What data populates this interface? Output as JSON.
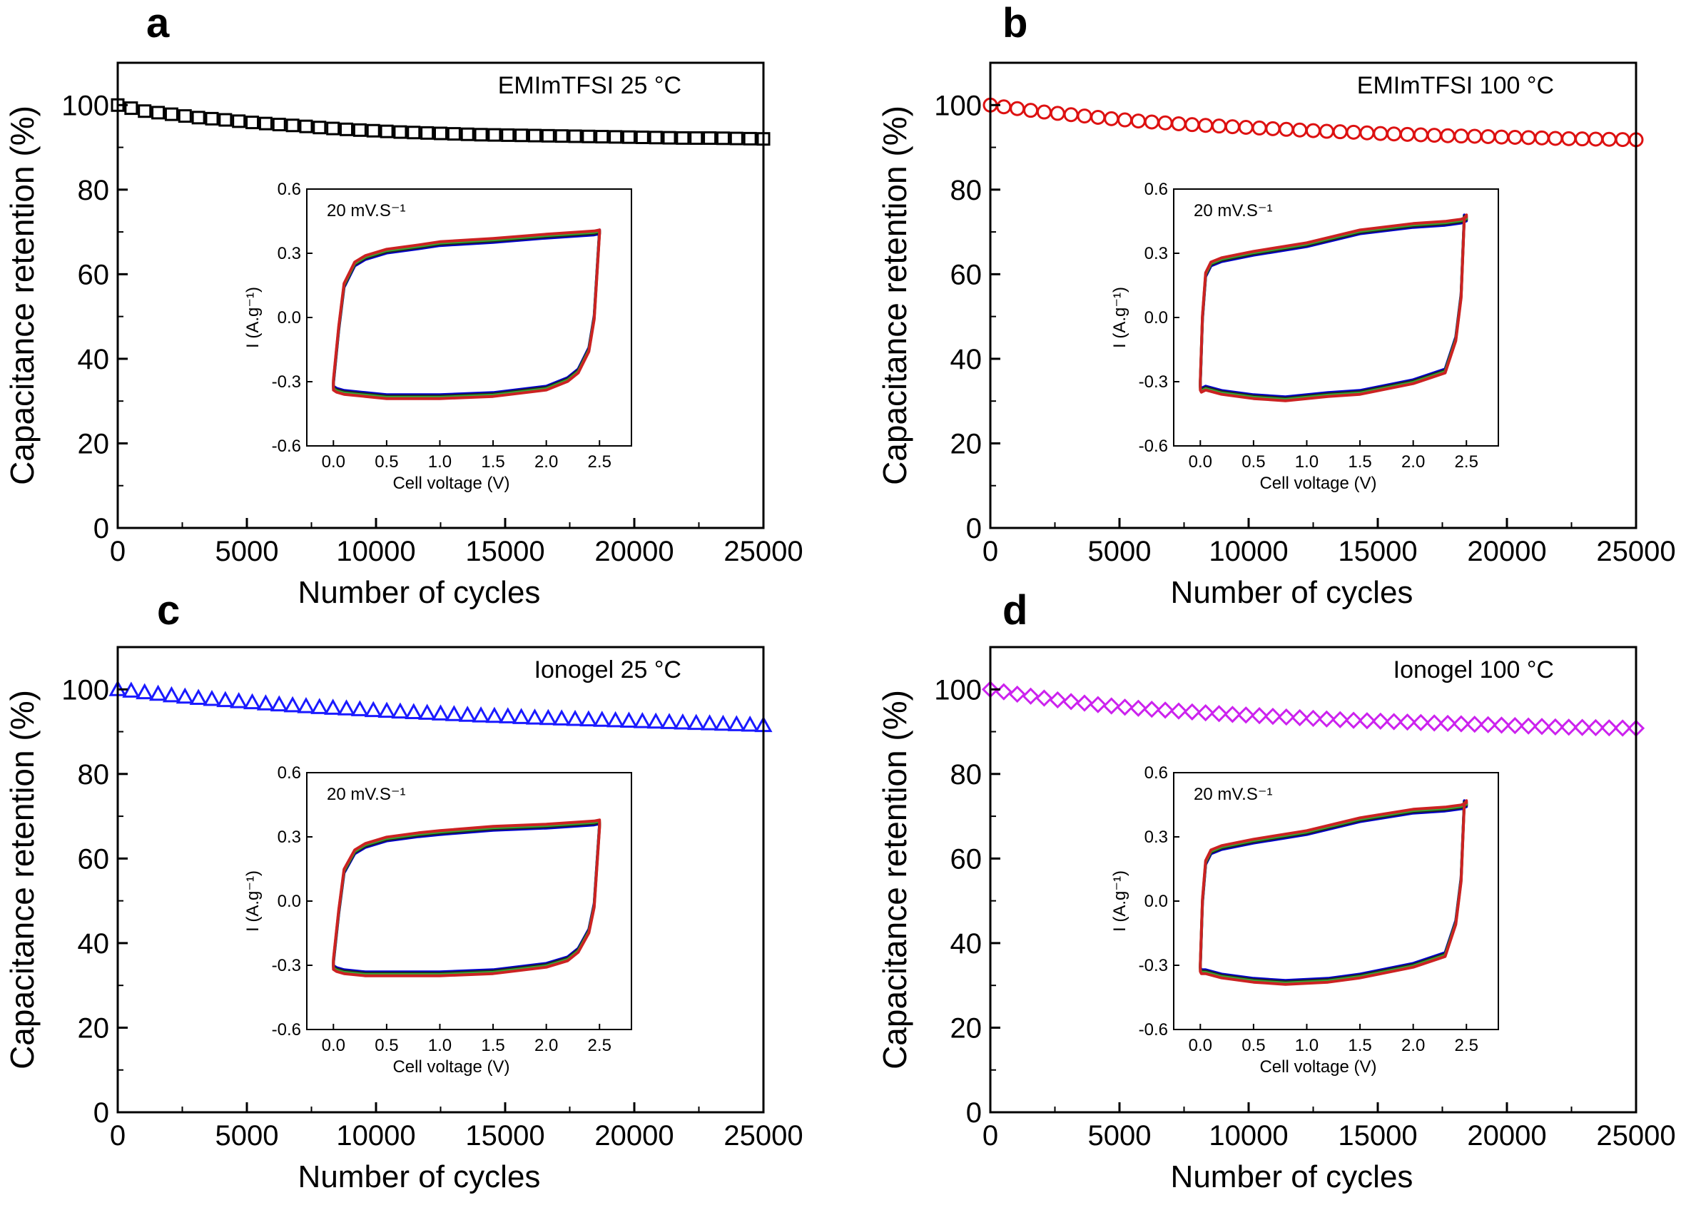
{
  "chart_data": [
    {
      "panel": "a",
      "type": "scatter",
      "annotation": "EMImTFSI 25 °C",
      "xlabel": "Number of cycles",
      "ylabel": "Capacitance retention (%)",
      "xlim": [
        0,
        25000
      ],
      "ylim": [
        0,
        110
      ],
      "xticks": [
        "0",
        "5000",
        "10000",
        "15000",
        "20000",
        "25000"
      ],
      "yticks": [
        "0",
        "20",
        "40",
        "60",
        "80",
        "100"
      ],
      "marker": "square",
      "color": "#000000",
      "series": [
        {
          "x": [
            0,
            1000,
            2000,
            3000,
            4000,
            5000,
            6000,
            7000,
            8000,
            9000,
            10000,
            11000,
            12000,
            13000,
            14000,
            15000,
            16000,
            17000,
            18000,
            19000,
            20000,
            21000,
            22000,
            23000,
            24000,
            25000
          ],
          "values": [
            100.0,
            98.6,
            97.9,
            97.1,
            96.6,
            96.0,
            95.5,
            95.1,
            94.6,
            94.2,
            93.9,
            93.6,
            93.4,
            93.2,
            93.0,
            92.9,
            92.8,
            92.7,
            92.6,
            92.5,
            92.4,
            92.3,
            92.2,
            92.2,
            92.1,
            92.0
          ]
        }
      ],
      "inset": {
        "rate_label": "20 mV.S⁻¹",
        "xlabel": "Cell voltage (V)",
        "ylabel": "I (A.g⁻¹)",
        "xlim": [
          -0.25,
          2.8
        ],
        "ylim": [
          -0.6,
          0.6
        ],
        "xticks": [
          "0.0",
          "0.5",
          "1.0",
          "1.5",
          "2.0",
          "2.5"
        ],
        "yticks": [
          "-0.6",
          "-0.3",
          "0.0",
          "0.3",
          "0.6"
        ],
        "cv_x": [
          0.0,
          0.05,
          0.1,
          0.2,
          0.3,
          0.5,
          0.8,
          1.0,
          1.5,
          2.0,
          2.3,
          2.45,
          2.5,
          2.5,
          2.45,
          2.4,
          2.3,
          2.2,
          2.0,
          1.5,
          1.0,
          0.5,
          0.3,
          0.1,
          0.03,
          0.0
        ],
        "cv_upper": [
          -0.3,
          -0.05,
          0.15,
          0.25,
          0.28,
          0.31,
          0.33,
          0.345,
          0.36,
          0.38,
          0.39,
          0.395,
          0.4
        ],
        "cv_lower": [
          0.4,
          0.0,
          -0.15,
          -0.25,
          -0.29,
          -0.33,
          -0.36,
          -0.37,
          -0.37,
          -0.36,
          -0.35,
          -0.34,
          -0.33
        ],
        "curve_colors": [
          "#0000cc",
          "#222222",
          "#33aa33",
          "#cc2222"
        ]
      }
    },
    {
      "panel": "b",
      "type": "scatter",
      "annotation": "EMImTFSI 100 °C",
      "xlabel": "Number of cycles",
      "ylabel": "Capacitance retention (%)",
      "xlim": [
        0,
        25000
      ],
      "ylim": [
        0,
        110
      ],
      "xticks": [
        "0",
        "5000",
        "10000",
        "15000",
        "20000",
        "25000"
      ],
      "yticks": [
        "0",
        "20",
        "40",
        "60",
        "80",
        "100"
      ],
      "marker": "circle",
      "color": "#dd1111",
      "series": [
        {
          "x": [
            0,
            1000,
            2000,
            3000,
            4000,
            5000,
            6000,
            7000,
            8000,
            9000,
            10000,
            11000,
            12000,
            13000,
            14000,
            15000,
            16000,
            17000,
            18000,
            19000,
            20000,
            21000,
            22000,
            23000,
            24000,
            25000
          ],
          "values": [
            100.0,
            99.2,
            98.4,
            97.8,
            97.2,
            96.6,
            96.1,
            95.7,
            95.3,
            95.0,
            94.7,
            94.4,
            94.1,
            93.8,
            93.6,
            93.3,
            93.1,
            92.9,
            92.7,
            92.6,
            92.4,
            92.3,
            92.1,
            92.0,
            91.9,
            91.8
          ]
        }
      ],
      "inset": {
        "rate_label": "20 mV.S⁻¹",
        "xlabel": "Cell voltage (V)",
        "ylabel": "I (A.g⁻¹)",
        "xlim": [
          -0.25,
          2.8
        ],
        "ylim": [
          -0.6,
          0.6
        ],
        "xticks": [
          "0.0",
          "0.5",
          "1.0",
          "1.5",
          "2.0",
          "2.5"
        ],
        "yticks": [
          "-0.6",
          "-0.3",
          "0.0",
          "0.3",
          "0.6"
        ],
        "cv_x": [
          0.0,
          0.02,
          0.05,
          0.1,
          0.2,
          0.5,
          1.0,
          1.5,
          2.0,
          2.3,
          2.45,
          2.5,
          2.5,
          2.48,
          2.45,
          2.4,
          2.3,
          2.0,
          1.5,
          1.2,
          0.8,
          0.5,
          0.2,
          0.05,
          0.01,
          0.0
        ],
        "cv_upper": [
          -0.3,
          0.0,
          0.2,
          0.25,
          0.27,
          0.3,
          0.34,
          0.4,
          0.43,
          0.44,
          0.45,
          0.46,
          0.47
        ],
        "cv_lower": [
          0.47,
          0.1,
          -0.1,
          -0.25,
          -0.3,
          -0.35,
          -0.36,
          -0.38,
          -0.37,
          -0.35,
          -0.33,
          -0.34,
          -0.33
        ],
        "curve_colors": [
          "#0000cc",
          "#222222",
          "#33aa33",
          "#cc2222"
        ]
      }
    },
    {
      "panel": "c",
      "type": "scatter",
      "annotation": "Ionogel 25 °C",
      "xlabel": "Number of cycles",
      "ylabel": "Capacitance retention (%)",
      "xlim": [
        0,
        25000
      ],
      "ylim": [
        0,
        110
      ],
      "xticks": [
        "0",
        "5000",
        "10000",
        "15000",
        "20000",
        "25000"
      ],
      "yticks": [
        "0",
        "20",
        "40",
        "60",
        "80",
        "100"
      ],
      "marker": "triangle",
      "color": "#1a1aff",
      "series": [
        {
          "x": [
            0,
            1000,
            2000,
            3000,
            4000,
            5000,
            6000,
            7000,
            8000,
            9000,
            10000,
            11000,
            12000,
            13000,
            14000,
            15000,
            16000,
            17000,
            18000,
            19000,
            20000,
            21000,
            22000,
            23000,
            24000,
            25000
          ],
          "values": [
            100.0,
            99.3,
            98.6,
            98.0,
            97.5,
            97.0,
            96.5,
            96.1,
            95.7,
            95.4,
            95.0,
            94.7,
            94.4,
            94.1,
            93.8,
            93.6,
            93.3,
            93.1,
            92.9,
            92.7,
            92.5,
            92.3,
            92.1,
            91.9,
            91.7,
            91.5
          ]
        }
      ],
      "inset": {
        "rate_label": "20 mV.S⁻¹",
        "xlabel": "Cell voltage (V)",
        "ylabel": "I (A.g⁻¹)",
        "xlim": [
          -0.25,
          2.8
        ],
        "ylim": [
          -0.6,
          0.6
        ],
        "xticks": [
          "0.0",
          "0.5",
          "1.0",
          "1.5",
          "2.0",
          "2.5"
        ],
        "yticks": [
          "-0.6",
          "-0.3",
          "0.0",
          "0.3",
          "0.6"
        ],
        "cv_x": [
          0.0,
          0.05,
          0.1,
          0.2,
          0.3,
          0.5,
          0.8,
          1.0,
          1.5,
          2.0,
          2.3,
          2.45,
          2.5,
          2.5,
          2.45,
          2.4,
          2.3,
          2.2,
          2.0,
          1.5,
          1.0,
          0.5,
          0.3,
          0.1,
          0.03,
          0.0
        ],
        "cv_upper": [
          -0.28,
          -0.05,
          0.14,
          0.23,
          0.26,
          0.29,
          0.31,
          0.32,
          0.34,
          0.35,
          0.36,
          0.365,
          0.37
        ],
        "cv_lower": [
          0.35,
          -0.02,
          -0.14,
          -0.23,
          -0.27,
          -0.3,
          -0.33,
          -0.34,
          -0.34,
          -0.34,
          -0.33,
          -0.32,
          -0.31
        ],
        "curve_colors": [
          "#0000cc",
          "#222222",
          "#33aa33",
          "#cc2222"
        ]
      }
    },
    {
      "panel": "d",
      "type": "scatter",
      "annotation": "Ionogel 100 °C",
      "xlabel": "Number of cycles",
      "ylabel": "Capacitance retention (%)",
      "xlim": [
        0,
        25000
      ],
      "ylim": [
        0,
        110
      ],
      "xticks": [
        "0",
        "5000",
        "10000",
        "15000",
        "20000",
        "25000"
      ],
      "yticks": [
        "0",
        "20",
        "40",
        "60",
        "80",
        "100"
      ],
      "marker": "diamond",
      "color": "#cc22ee",
      "series": [
        {
          "x": [
            0,
            1000,
            2000,
            3000,
            4000,
            5000,
            6000,
            7000,
            8000,
            9000,
            10000,
            11000,
            12000,
            13000,
            14000,
            15000,
            16000,
            17000,
            18000,
            19000,
            20000,
            21000,
            22000,
            23000,
            24000,
            25000
          ],
          "values": [
            100.0,
            98.9,
            98.0,
            97.2,
            96.5,
            95.9,
            95.4,
            95.0,
            94.6,
            94.2,
            93.9,
            93.6,
            93.3,
            93.0,
            92.7,
            92.5,
            92.3,
            92.1,
            91.9,
            91.7,
            91.5,
            91.3,
            91.1,
            91.0,
            90.9,
            90.8
          ]
        }
      ],
      "inset": {
        "rate_label": "20 mV.S⁻¹",
        "xlabel": "Cell voltage (V)",
        "ylabel": "I (A.g⁻¹)",
        "xlim": [
          -0.25,
          2.8
        ],
        "ylim": [
          -0.6,
          0.6
        ],
        "xticks": [
          "0.0",
          "0.5",
          "1.0",
          "1.5",
          "2.0",
          "2.5"
        ],
        "yticks": [
          "-0.6",
          "-0.3",
          "0.0",
          "0.3",
          "0.6"
        ],
        "cv_x": [
          0.0,
          0.02,
          0.05,
          0.1,
          0.2,
          0.5,
          1.0,
          1.5,
          2.0,
          2.3,
          2.45,
          2.5,
          2.5,
          2.48,
          2.45,
          2.4,
          2.3,
          2.0,
          1.5,
          1.2,
          0.8,
          0.5,
          0.2,
          0.05,
          0.01,
          0.0
        ],
        "cv_upper": [
          -0.3,
          0.0,
          0.18,
          0.23,
          0.25,
          0.28,
          0.32,
          0.38,
          0.42,
          0.43,
          0.44,
          0.45,
          0.46
        ],
        "cv_lower": [
          0.46,
          0.1,
          -0.1,
          -0.25,
          -0.3,
          -0.35,
          -0.37,
          -0.38,
          -0.37,
          -0.35,
          -0.33,
          -0.33,
          -0.32
        ],
        "curve_colors": [
          "#0000cc",
          "#222222",
          "#33aa33",
          "#cc2222"
        ]
      }
    }
  ]
}
